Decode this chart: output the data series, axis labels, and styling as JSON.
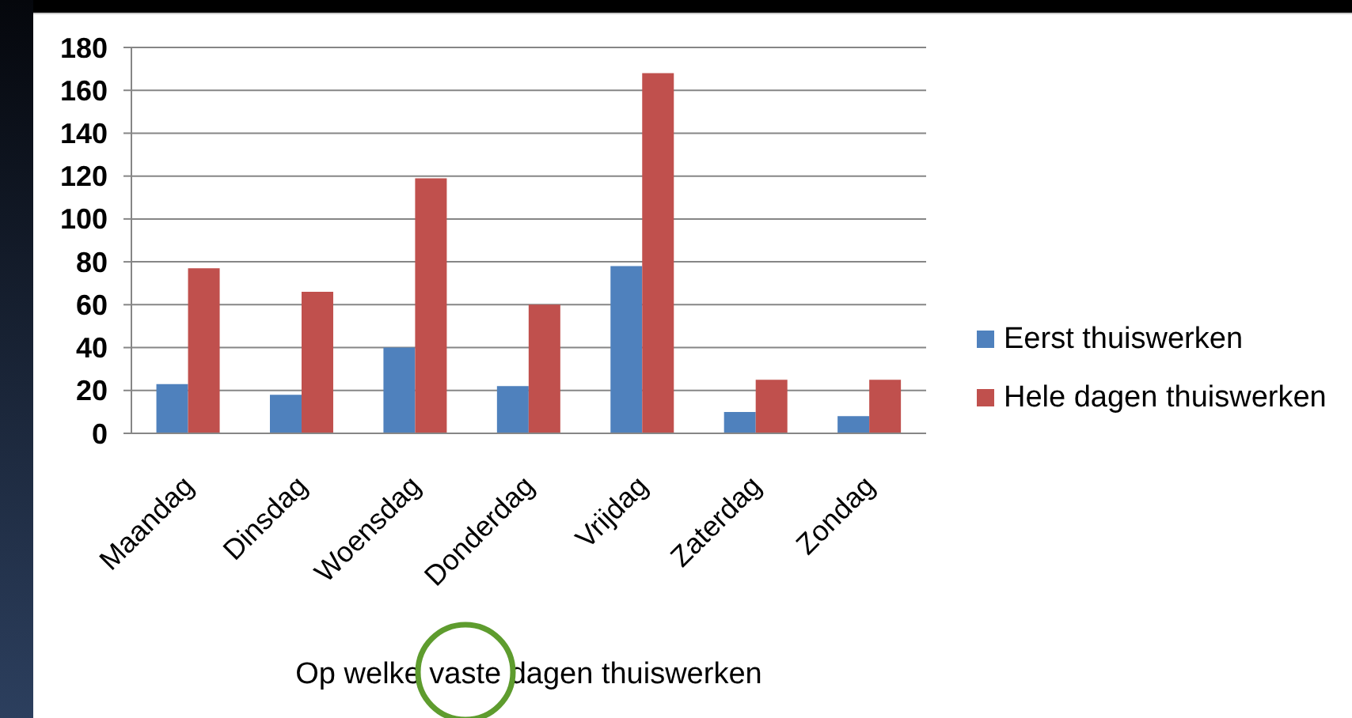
{
  "chart_data": {
    "type": "bar",
    "xlabel": "Op welke vaste dagen thuiswerken",
    "categories": [
      "Maandag",
      "Dinsdag",
      "Woensdag",
      "Donderdag",
      "Vrijdag",
      "Zaterdag",
      "Zondag"
    ],
    "series": [
      {
        "name": "Eerst thuiswerken",
        "color": "#4f81bd",
        "values": [
          23,
          18,
          40,
          22,
          78,
          10,
          8
        ]
      },
      {
        "name": "Hele dagen thuiswerken",
        "color": "#c0504d",
        "values": [
          77,
          66,
          119,
          60,
          168,
          25,
          25
        ]
      }
    ],
    "ylim": [
      0,
      180
    ],
    "yticks": [
      0,
      20,
      40,
      60,
      80,
      100,
      120,
      140,
      160,
      180
    ],
    "grid": "y",
    "legend": "right"
  }
}
